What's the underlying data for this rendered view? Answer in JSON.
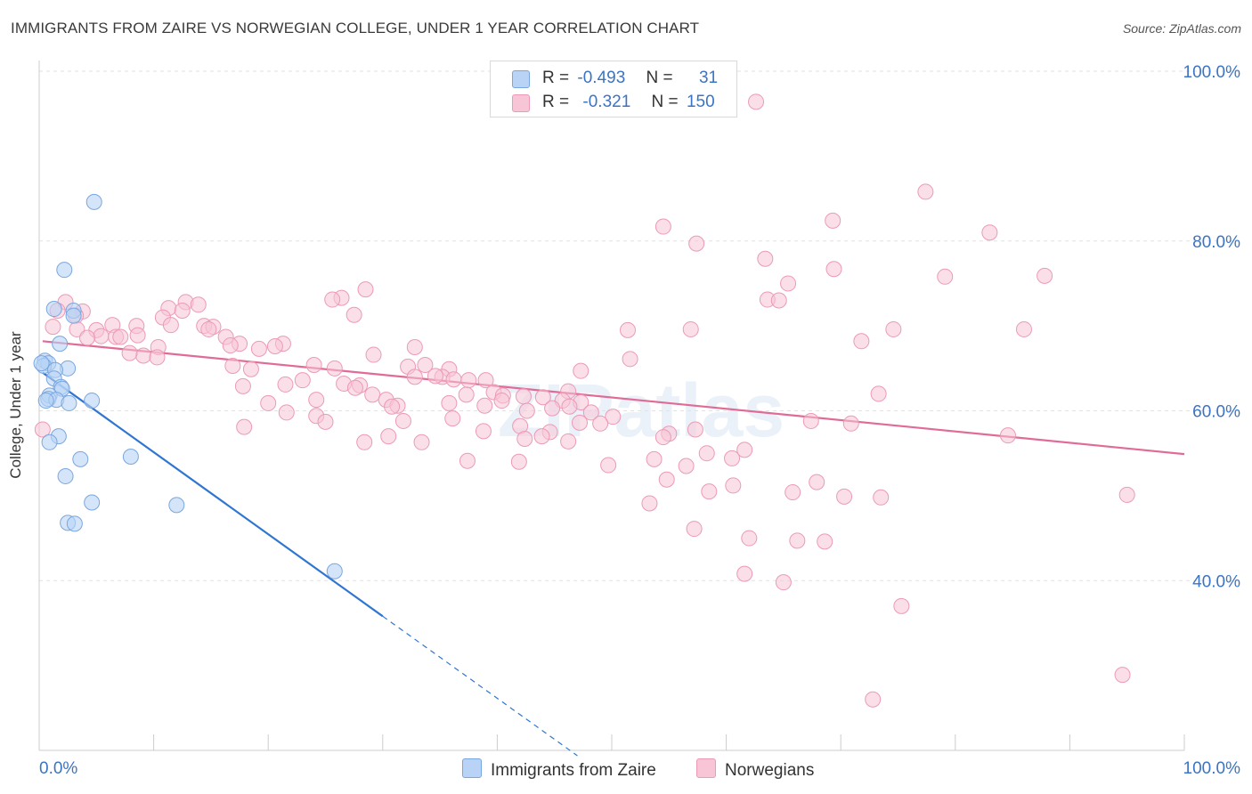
{
  "header": {
    "title": "IMMIGRANTS FROM ZAIRE VS NORWEGIAN COLLEGE, UNDER 1 YEAR CORRELATION CHART",
    "source": "Source: ZipAtlas.com"
  },
  "legend_top": {
    "blue": {
      "r_label": "R =",
      "r_value": "-0.493",
      "n_label": "N =",
      "n_value": "31"
    },
    "pink": {
      "r_label": "R =",
      "r_value": "-0.321",
      "n_label": "N =",
      "n_value": "150"
    }
  },
  "legend_bottom": {
    "blue_label": "Immigrants from Zaire",
    "pink_label": "Norwegians"
  },
  "colors": {
    "blue_fill": "#b8d3f5",
    "blue_stroke": "#7aa6e0",
    "blue_line": "#2f76d2",
    "pink_fill": "#f7c5d5",
    "pink_stroke": "#ec9ab5",
    "pink_line": "#e06b96",
    "axis_label": "#3b74c4",
    "grid": "#e2e2e2"
  },
  "chart_data": {
    "type": "scatter",
    "title": "IMMIGRANTS FROM ZAIRE VS NORWEGIAN COLLEGE, UNDER 1 YEAR CORRELATION CHART",
    "xlabel": "",
    "ylabel": "College, Under 1 year",
    "xlim": [
      0,
      100
    ],
    "ylim": [
      20,
      100
    ],
    "x_tick_labels": [
      "0.0%",
      "100.0%"
    ],
    "y_tick_labels": [
      "40.0%",
      "60.0%",
      "80.0%",
      "100.0%"
    ],
    "y_ticks": [
      40,
      60,
      80,
      100
    ],
    "grid": true,
    "legend_position": "top-center",
    "watermark": "ZIPatlas",
    "series": [
      {
        "name": "Immigrants from Zaire",
        "color": "blue",
        "r": -0.493,
        "n": 31,
        "trend": {
          "x0": 0.3,
          "y0": 64.5,
          "x1": 30,
          "y1": 35.8,
          "dash_to_x": 47
        },
        "points": [
          [
            4.8,
            84.6
          ],
          [
            2.2,
            76.6
          ],
          [
            1.3,
            72.0
          ],
          [
            3.0,
            71.8
          ],
          [
            3.0,
            71.2
          ],
          [
            1.8,
            67.9
          ],
          [
            0.5,
            65.9
          ],
          [
            0.8,
            65.6
          ],
          [
            0.4,
            65.3
          ],
          [
            2.5,
            65.0
          ],
          [
            1.4,
            64.8
          ],
          [
            1.3,
            63.8
          ],
          [
            1.9,
            62.8
          ],
          [
            2.0,
            62.6
          ],
          [
            0.9,
            61.8
          ],
          [
            0.8,
            61.4
          ],
          [
            1.5,
            61.3
          ],
          [
            4.6,
            61.2
          ],
          [
            0.6,
            61.2
          ],
          [
            2.6,
            60.9
          ],
          [
            1.7,
            57.0
          ],
          [
            0.9,
            56.3
          ],
          [
            3.6,
            54.3
          ],
          [
            8.0,
            54.6
          ],
          [
            2.3,
            52.3
          ],
          [
            4.6,
            49.2
          ],
          [
            12.0,
            48.9
          ],
          [
            2.5,
            46.8
          ],
          [
            3.1,
            46.7
          ],
          [
            25.8,
            41.1
          ],
          [
            0.2,
            65.6
          ]
        ]
      },
      {
        "name": "Norwegians",
        "color": "pink",
        "r": -0.321,
        "n": 150,
        "trend": {
          "x0": 0.3,
          "y0": 68.2,
          "x1": 100,
          "y1": 54.9
        },
        "points": [
          [
            62.6,
            96.4
          ],
          [
            77.4,
            85.8
          ],
          [
            69.3,
            82.4
          ],
          [
            54.5,
            81.7
          ],
          [
            83.0,
            81.0
          ],
          [
            57.4,
            79.7
          ],
          [
            63.4,
            77.9
          ],
          [
            69.4,
            76.7
          ],
          [
            79.1,
            75.8
          ],
          [
            87.8,
            75.9
          ],
          [
            65.4,
            75.0
          ],
          [
            28.5,
            74.3
          ],
          [
            26.4,
            73.3
          ],
          [
            25.6,
            73.1
          ],
          [
            63.6,
            73.1
          ],
          [
            64.6,
            73.0
          ],
          [
            2.3,
            72.8
          ],
          [
            12.8,
            72.8
          ],
          [
            13.9,
            72.5
          ],
          [
            11.3,
            72.1
          ],
          [
            1.6,
            71.8
          ],
          [
            3.8,
            71.7
          ],
          [
            12.5,
            71.8
          ],
          [
            27.5,
            71.3
          ],
          [
            10.8,
            71.0
          ],
          [
            3.2,
            71.2
          ],
          [
            6.4,
            70.1
          ],
          [
            8.5,
            70.0
          ],
          [
            11.5,
            70.1
          ],
          [
            1.2,
            69.9
          ],
          [
            14.4,
            70.0
          ],
          [
            3.3,
            69.6
          ],
          [
            15.2,
            69.9
          ],
          [
            14.8,
            69.6
          ],
          [
            5.0,
            69.5
          ],
          [
            56.9,
            69.6
          ],
          [
            51.4,
            69.5
          ],
          [
            74.6,
            69.6
          ],
          [
            86.0,
            69.6
          ],
          [
            5.4,
            68.8
          ],
          [
            6.7,
            68.7
          ],
          [
            7.1,
            68.7
          ],
          [
            8.6,
            68.9
          ],
          [
            4.2,
            68.6
          ],
          [
            16.3,
            68.7
          ],
          [
            71.8,
            68.2
          ],
          [
            17.5,
            67.9
          ],
          [
            21.3,
            67.9
          ],
          [
            16.7,
            67.7
          ],
          [
            10.4,
            67.5
          ],
          [
            20.6,
            67.6
          ],
          [
            19.2,
            67.3
          ],
          [
            32.8,
            67.5
          ],
          [
            9.1,
            66.5
          ],
          [
            7.9,
            66.8
          ],
          [
            10.3,
            66.3
          ],
          [
            29.2,
            66.6
          ],
          [
            51.6,
            66.1
          ],
          [
            16.9,
            65.3
          ],
          [
            24.0,
            65.4
          ],
          [
            32.2,
            65.2
          ],
          [
            33.7,
            65.4
          ],
          [
            25.8,
            65.0
          ],
          [
            18.5,
            64.9
          ],
          [
            47.3,
            64.7
          ],
          [
            35.8,
            64.9
          ],
          [
            32.8,
            64.0
          ],
          [
            35.2,
            64.0
          ],
          [
            36.2,
            63.7
          ],
          [
            23.0,
            63.6
          ],
          [
            34.6,
            64.1
          ],
          [
            37.5,
            63.6
          ],
          [
            26.6,
            63.2
          ],
          [
            21.5,
            63.1
          ],
          [
            28.0,
            63.0
          ],
          [
            39.0,
            63.6
          ],
          [
            17.8,
            62.9
          ],
          [
            46.2,
            62.3
          ],
          [
            73.3,
            62.0
          ],
          [
            27.6,
            62.7
          ],
          [
            39.7,
            62.2
          ],
          [
            40.5,
            61.8
          ],
          [
            37.3,
            61.9
          ],
          [
            29.1,
            61.9
          ],
          [
            30.3,
            61.3
          ],
          [
            24.2,
            61.3
          ],
          [
            42.3,
            61.7
          ],
          [
            44.0,
            61.6
          ],
          [
            45.7,
            61.2
          ],
          [
            47.3,
            61.0
          ],
          [
            40.4,
            61.2
          ],
          [
            20.0,
            60.9
          ],
          [
            35.8,
            60.9
          ],
          [
            38.9,
            60.6
          ],
          [
            31.3,
            60.6
          ],
          [
            30.8,
            60.5
          ],
          [
            44.8,
            60.3
          ],
          [
            46.3,
            60.5
          ],
          [
            42.6,
            60.0
          ],
          [
            48.2,
            59.8
          ],
          [
            21.6,
            59.8
          ],
          [
            24.2,
            59.4
          ],
          [
            25.0,
            58.7
          ],
          [
            31.8,
            58.8
          ],
          [
            36.1,
            59.1
          ],
          [
            50.1,
            59.3
          ],
          [
            47.2,
            58.6
          ],
          [
            67.4,
            58.8
          ],
          [
            70.9,
            58.5
          ],
          [
            49.0,
            58.5
          ],
          [
            42.0,
            58.2
          ],
          [
            44.6,
            57.5
          ],
          [
            17.9,
            58.1
          ],
          [
            57.3,
            57.8
          ],
          [
            38.8,
            57.6
          ],
          [
            43.9,
            57.0
          ],
          [
            55.0,
            57.3
          ],
          [
            54.5,
            56.9
          ],
          [
            84.6,
            57.1
          ],
          [
            30.5,
            57.0
          ],
          [
            28.4,
            56.3
          ],
          [
            33.4,
            56.3
          ],
          [
            42.4,
            56.7
          ],
          [
            46.2,
            56.4
          ],
          [
            61.6,
            55.4
          ],
          [
            58.3,
            55.0
          ],
          [
            53.7,
            54.3
          ],
          [
            37.4,
            54.1
          ],
          [
            41.9,
            54.0
          ],
          [
            60.5,
            54.4
          ],
          [
            49.7,
            53.6
          ],
          [
            56.5,
            53.5
          ],
          [
            54.8,
            51.9
          ],
          [
            67.9,
            51.6
          ],
          [
            60.6,
            51.2
          ],
          [
            58.5,
            50.5
          ],
          [
            65.8,
            50.4
          ],
          [
            70.3,
            49.9
          ],
          [
            73.5,
            49.8
          ],
          [
            95.0,
            50.1
          ],
          [
            53.3,
            49.1
          ],
          [
            57.2,
            46.1
          ],
          [
            62.0,
            45.0
          ],
          [
            66.2,
            44.7
          ],
          [
            68.6,
            44.6
          ],
          [
            61.6,
            40.8
          ],
          [
            65.0,
            39.8
          ],
          [
            75.3,
            37.0
          ],
          [
            94.6,
            28.9
          ],
          [
            72.8,
            26.0
          ],
          [
            0.3,
            57.8
          ]
        ]
      }
    ]
  }
}
